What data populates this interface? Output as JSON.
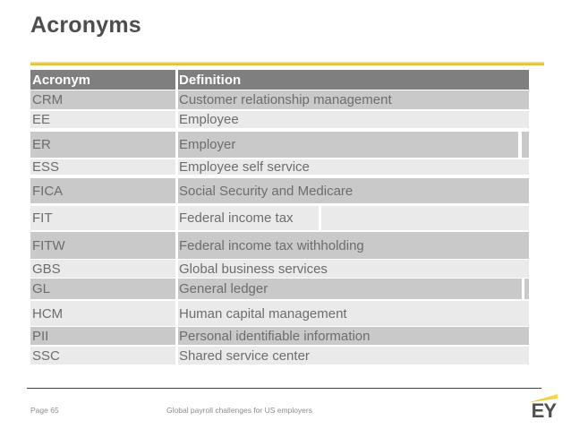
{
  "slide": {
    "title": "Acronyms"
  },
  "colors": {
    "accent_yellow": "#e8c93f",
    "header_bg": "#7f7f7f",
    "row_dark": "#c9c9c9",
    "row_light": "#eaeaea"
  },
  "table": {
    "headers": {
      "acronym": "Acronym",
      "definition": "Definition"
    },
    "rows": [
      {
        "acronym": "CRM",
        "definition": "Customer relationship management"
      },
      {
        "acronym": "EE",
        "definition": "Employee"
      },
      {
        "acronym": "ER",
        "definition": "Employer"
      },
      {
        "acronym": "ESS",
        "definition": "Employee self service"
      },
      {
        "acronym": "FICA",
        "definition": "Social Security and Medicare"
      },
      {
        "acronym": "FIT",
        "definition": "Federal income tax"
      },
      {
        "acronym": "FITW",
        "definition": "Federal income tax withholding"
      },
      {
        "acronym": "GBS",
        "definition": "Global business services"
      },
      {
        "acronym": "GL",
        "definition": "General ledger"
      },
      {
        "acronym": "HCM",
        "definition": "Human capital management"
      },
      {
        "acronym": "PII",
        "definition": "Personal identifiable information"
      },
      {
        "acronym": "SSC",
        "definition": "Shared service center"
      }
    ]
  },
  "footer": {
    "page_label": "Page 65",
    "deck_title": "Global payroll challenges for US employers",
    "logo_text": "EY"
  }
}
